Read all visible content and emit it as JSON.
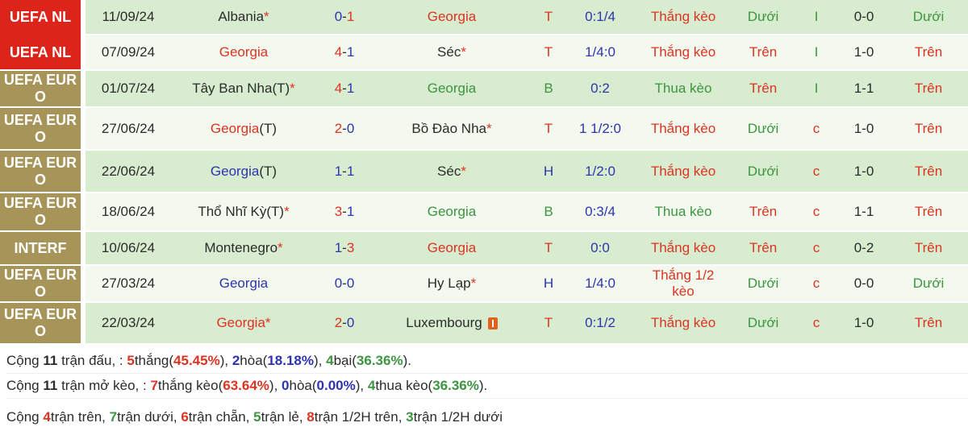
{
  "colors": {
    "accent_red": "#dd3322",
    "accent_blue": "#2e34b0",
    "accent_green": "#3d9441",
    "text_dark": "#2b2b2b",
    "league_red_bg": "#dc241a",
    "league_olive_bg": "#a79459",
    "row_dark_bg": "#d8ecd0",
    "row_light_bg": "#f3f9ee"
  },
  "table": {
    "rows": [
      {
        "league": {
          "label": "UEFA NL",
          "bg": "red"
        },
        "date": "11/09/24",
        "home": [
          {
            "t": "Albania",
            "c": "dark"
          },
          {
            "t": "*",
            "c": "star"
          }
        ],
        "score": [
          {
            "t": "0",
            "c": "blue"
          },
          {
            "t": "-",
            "c": "dark"
          },
          {
            "t": "1",
            "c": "red"
          }
        ],
        "away": [
          {
            "t": "Georgia",
            "c": "red"
          }
        ],
        "ht": [
          {
            "t": "T",
            "c": "red"
          }
        ],
        "odds": [
          {
            "t": "0:1/4",
            "c": "blue"
          }
        ],
        "result": [
          {
            "t": "Thắng kèo",
            "c": "red"
          }
        ],
        "ou1": [
          {
            "t": "Dưới",
            "c": "green"
          }
        ],
        "flag": [
          {
            "t": "I",
            "c": "green"
          }
        ],
        "h2h": [
          {
            "t": "0-0",
            "c": "dark"
          }
        ],
        "ou2": [
          {
            "t": "Dưới",
            "c": "green"
          }
        ]
      },
      {
        "league": {
          "label": "UEFA NL",
          "bg": "red"
        },
        "date": "07/09/24",
        "home": [
          {
            "t": "Georgia",
            "c": "red"
          }
        ],
        "score": [
          {
            "t": "4",
            "c": "red"
          },
          {
            "t": "-",
            "c": "dark"
          },
          {
            "t": "1",
            "c": "blue"
          }
        ],
        "away": [
          {
            "t": "Séc",
            "c": "dark"
          },
          {
            "t": "*",
            "c": "star"
          }
        ],
        "ht": [
          {
            "t": "T",
            "c": "red"
          }
        ],
        "odds": [
          {
            "t": "1/4:0",
            "c": "blue"
          }
        ],
        "result": [
          {
            "t": "Thắng kèo",
            "c": "red"
          }
        ],
        "ou1": [
          {
            "t": "Trên",
            "c": "red"
          }
        ],
        "flag": [
          {
            "t": "I",
            "c": "green"
          }
        ],
        "h2h": [
          {
            "t": "1-0",
            "c": "dark"
          }
        ],
        "ou2": [
          {
            "t": "Trên",
            "c": "red"
          }
        ]
      },
      {
        "league": {
          "label": "UEFA EURO",
          "bg": "olive"
        },
        "date": "01/07/24",
        "home": [
          {
            "t": "Tây Ban Nha(T)",
            "c": "dark"
          },
          {
            "t": "*",
            "c": "star"
          }
        ],
        "score": [
          {
            "t": "4",
            "c": "red"
          },
          {
            "t": "-",
            "c": "dark"
          },
          {
            "t": "1",
            "c": "blue"
          }
        ],
        "away": [
          {
            "t": "Georgia",
            "c": "green"
          }
        ],
        "ht": [
          {
            "t": "B",
            "c": "green"
          }
        ],
        "odds": [
          {
            "t": "0:2",
            "c": "blue"
          }
        ],
        "result": [
          {
            "t": "Thua kèo",
            "c": "green"
          }
        ],
        "ou1": [
          {
            "t": "Trên",
            "c": "red"
          }
        ],
        "flag": [
          {
            "t": "I",
            "c": "green"
          }
        ],
        "h2h": [
          {
            "t": "1-1",
            "c": "dark"
          }
        ],
        "ou2": [
          {
            "t": "Trên",
            "c": "red"
          }
        ]
      },
      {
        "league": {
          "label": "UEFA EURO",
          "bg": "olive"
        },
        "date": "27/06/24",
        "home": [
          {
            "t": "Georgia",
            "c": "red"
          },
          {
            "t": "(T)",
            "c": "dark"
          }
        ],
        "score": [
          {
            "t": "2",
            "c": "red"
          },
          {
            "t": "-",
            "c": "dark"
          },
          {
            "t": "0",
            "c": "blue"
          }
        ],
        "away": [
          {
            "t": "Bồ Đào Nha",
            "c": "dark"
          },
          {
            "t": "*",
            "c": "star"
          }
        ],
        "ht": [
          {
            "t": "T",
            "c": "red"
          }
        ],
        "odds": [
          {
            "t": "1 1/2:0",
            "c": "blue"
          }
        ],
        "result": [
          {
            "t": "Thắng kèo",
            "c": "red"
          }
        ],
        "ou1": [
          {
            "t": "Dưới",
            "c": "green"
          }
        ],
        "flag": [
          {
            "t": "c",
            "c": "red"
          }
        ],
        "h2h": [
          {
            "t": "1-0",
            "c": "dark"
          }
        ],
        "ou2": [
          {
            "t": "Trên",
            "c": "red"
          }
        ]
      },
      {
        "league": {
          "label": "UEFA EURO",
          "bg": "olive"
        },
        "date": "22/06/24",
        "home": [
          {
            "t": "Georgia",
            "c": "blue"
          },
          {
            "t": "(T)",
            "c": "dark"
          }
        ],
        "score": [
          {
            "t": "1",
            "c": "blue"
          },
          {
            "t": "-",
            "c": "dark"
          },
          {
            "t": "1",
            "c": "blue"
          }
        ],
        "away": [
          {
            "t": "Séc",
            "c": "dark"
          },
          {
            "t": "*",
            "c": "star"
          }
        ],
        "ht": [
          {
            "t": "H",
            "c": "blue"
          }
        ],
        "odds": [
          {
            "t": "1/2:0",
            "c": "blue"
          }
        ],
        "result": [
          {
            "t": "Thắng kèo",
            "c": "red"
          }
        ],
        "ou1": [
          {
            "t": "Dưới",
            "c": "green"
          }
        ],
        "flag": [
          {
            "t": "c",
            "c": "red"
          }
        ],
        "h2h": [
          {
            "t": "1-0",
            "c": "dark"
          }
        ],
        "ou2": [
          {
            "t": "Trên",
            "c": "red"
          }
        ]
      },
      {
        "league": {
          "label": "UEFA EURO",
          "bg": "olive"
        },
        "date": "18/06/24",
        "home": [
          {
            "t": "Thổ Nhĩ Kỳ(T)",
            "c": "dark"
          },
          {
            "t": "*",
            "c": "star"
          }
        ],
        "score": [
          {
            "t": "3",
            "c": "red"
          },
          {
            "t": "-",
            "c": "dark"
          },
          {
            "t": "1",
            "c": "blue"
          }
        ],
        "away": [
          {
            "t": "Georgia",
            "c": "green"
          }
        ],
        "ht": [
          {
            "t": "B",
            "c": "green"
          }
        ],
        "odds": [
          {
            "t": "0:3/4",
            "c": "blue"
          }
        ],
        "result": [
          {
            "t": "Thua kèo",
            "c": "green"
          }
        ],
        "ou1": [
          {
            "t": "Trên",
            "c": "red"
          }
        ],
        "flag": [
          {
            "t": "c",
            "c": "red"
          }
        ],
        "h2h": [
          {
            "t": "1-1",
            "c": "dark"
          }
        ],
        "ou2": [
          {
            "t": "Trên",
            "c": "red"
          }
        ]
      },
      {
        "league": {
          "label": "INTERF",
          "bg": "olive"
        },
        "date": "10/06/24",
        "home": [
          {
            "t": "Montenegro",
            "c": "dark"
          },
          {
            "t": "*",
            "c": "star"
          }
        ],
        "score": [
          {
            "t": "1",
            "c": "blue"
          },
          {
            "t": "-",
            "c": "dark"
          },
          {
            "t": "3",
            "c": "red"
          }
        ],
        "away": [
          {
            "t": "Georgia",
            "c": "red"
          }
        ],
        "ht": [
          {
            "t": "T",
            "c": "red"
          }
        ],
        "odds": [
          {
            "t": "0:0",
            "c": "blue"
          }
        ],
        "result": [
          {
            "t": "Thắng kèo",
            "c": "red"
          }
        ],
        "ou1": [
          {
            "t": "Trên",
            "c": "red"
          }
        ],
        "flag": [
          {
            "t": "c",
            "c": "red"
          }
        ],
        "h2h": [
          {
            "t": "0-2",
            "c": "dark"
          }
        ],
        "ou2": [
          {
            "t": "Trên",
            "c": "red"
          }
        ]
      },
      {
        "league": {
          "label": "UEFA EURO",
          "bg": "olive"
        },
        "date": "27/03/24",
        "home": [
          {
            "t": "Georgia",
            "c": "blue"
          }
        ],
        "score": [
          {
            "t": "0",
            "c": "blue"
          },
          {
            "t": "-",
            "c": "dark"
          },
          {
            "t": "0",
            "c": "blue"
          }
        ],
        "away": [
          {
            "t": "Hy Lạp",
            "c": "dark"
          },
          {
            "t": "*",
            "c": "star"
          }
        ],
        "ht": [
          {
            "t": "H",
            "c": "blue"
          }
        ],
        "odds": [
          {
            "t": "1/4:0",
            "c": "blue"
          }
        ],
        "result": [
          {
            "t": "Thắng 1/2 kèo",
            "c": "red"
          }
        ],
        "ou1": [
          {
            "t": "Dưới",
            "c": "green"
          }
        ],
        "flag": [
          {
            "t": "c",
            "c": "red"
          }
        ],
        "h2h": [
          {
            "t": "0-0",
            "c": "dark"
          }
        ],
        "ou2": [
          {
            "t": "Dưới",
            "c": "green"
          }
        ]
      },
      {
        "league": {
          "label": "UEFA EURO",
          "bg": "olive"
        },
        "date": "22/03/24",
        "home": [
          {
            "t": "Georgia",
            "c": "red"
          },
          {
            "t": "*",
            "c": "star"
          }
        ],
        "score": [
          {
            "t": "2",
            "c": "red"
          },
          {
            "t": "-",
            "c": "dark"
          },
          {
            "t": "0",
            "c": "blue"
          }
        ],
        "away": [
          {
            "t": "Luxembourg",
            "c": "dark"
          },
          {
            "icon": "red-card"
          }
        ],
        "ht": [
          {
            "t": "T",
            "c": "red"
          }
        ],
        "odds": [
          {
            "t": "0:1/2",
            "c": "blue"
          }
        ],
        "result": [
          {
            "t": "Thắng kèo",
            "c": "red"
          }
        ],
        "ou1": [
          {
            "t": "Dưới",
            "c": "green"
          }
        ],
        "flag": [
          {
            "t": "c",
            "c": "red"
          }
        ],
        "h2h": [
          {
            "t": "1-0",
            "c": "dark"
          }
        ],
        "ou2": [
          {
            "t": "Trên",
            "c": "red"
          }
        ]
      }
    ]
  },
  "summary": {
    "lines": [
      {
        "segments": [
          {
            "t": "Cộng ",
            "c": "dark"
          },
          {
            "t": "11",
            "c": "dark",
            "b": 1
          },
          {
            "t": " trận đấu, : ",
            "c": "dark"
          },
          {
            "t": "5",
            "c": "red",
            "b": 1
          },
          {
            "t": "thắng(",
            "c": "dark"
          },
          {
            "t": "45.45%",
            "c": "red",
            "b": 1
          },
          {
            "t": "), ",
            "c": "dark"
          },
          {
            "t": "2",
            "c": "blue",
            "b": 1
          },
          {
            "t": "hòa(",
            "c": "dark"
          },
          {
            "t": "18.18%",
            "c": "blue",
            "b": 1
          },
          {
            "t": "), ",
            "c": "dark"
          },
          {
            "t": "4",
            "c": "green",
            "b": 1
          },
          {
            "t": "bại(",
            "c": "dark"
          },
          {
            "t": "36.36%",
            "c": "green",
            "b": 1
          },
          {
            "t": ").",
            "c": "dark"
          }
        ]
      },
      {
        "segments": [
          {
            "t": "Cộng ",
            "c": "dark"
          },
          {
            "t": "11",
            "c": "dark",
            "b": 1
          },
          {
            "t": " trận mở kèo, : ",
            "c": "dark"
          },
          {
            "t": "7",
            "c": "red",
            "b": 1
          },
          {
            "t": "thắng kèo(",
            "c": "dark"
          },
          {
            "t": "63.64%",
            "c": "red",
            "b": 1
          },
          {
            "t": "), ",
            "c": "dark"
          },
          {
            "t": "0",
            "c": "blue",
            "b": 1
          },
          {
            "t": "hòa(",
            "c": "dark"
          },
          {
            "t": "0.00%",
            "c": "blue",
            "b": 1
          },
          {
            "t": "), ",
            "c": "dark"
          },
          {
            "t": "4",
            "c": "green",
            "b": 1
          },
          {
            "t": "thua kèo(",
            "c": "dark"
          },
          {
            "t": "36.36%",
            "c": "green",
            "b": 1
          },
          {
            "t": ").",
            "c": "dark"
          }
        ]
      },
      {
        "segments": [
          {
            "t": "Cộng ",
            "c": "dark"
          },
          {
            "t": "4",
            "c": "red",
            "b": 1
          },
          {
            "t": "trận trên, ",
            "c": "dark"
          },
          {
            "t": "7",
            "c": "green",
            "b": 1
          },
          {
            "t": "trận dưới, ",
            "c": "dark"
          },
          {
            "t": "6",
            "c": "red",
            "b": 1
          },
          {
            "t": "trận chẵn, ",
            "c": "dark"
          },
          {
            "t": "5",
            "c": "green",
            "b": 1
          },
          {
            "t": "trận lẻ, ",
            "c": "dark"
          },
          {
            "t": "8",
            "c": "red",
            "b": 1
          },
          {
            "t": "trận 1/2H trên, ",
            "c": "dark"
          },
          {
            "t": "3",
            "c": "green",
            "b": 1
          },
          {
            "t": "trận 1/2H dưới",
            "c": "dark"
          }
        ]
      }
    ]
  }
}
